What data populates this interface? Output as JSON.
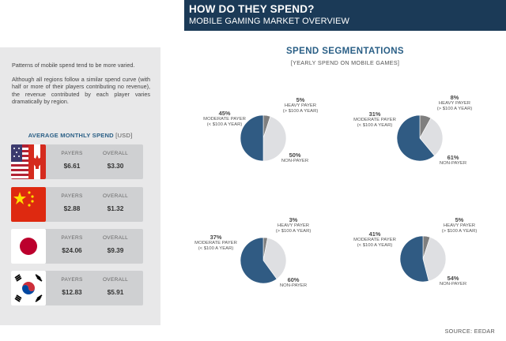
{
  "header": {
    "title": "HOW DO THEY SPEND?",
    "subtitle": "MOBILE GAMING MARKET OVERVIEW"
  },
  "intro": {
    "p1": "Patterns of mobile spend tend to be more varied.",
    "p2": "Although all regions follow a similar spend curve (with half or more of their players contributing no revenue), the revenue contributed by each player varies dramatically by region."
  },
  "avg_spend": {
    "title": "AVERAGE MONTHLY SPEND",
    "unit": "[USD]",
    "col_payers": "PAYERS",
    "col_overall": "OVERALL",
    "rows": [
      {
        "flag": "us-canada-flag",
        "payers": "$6.61",
        "overall": "$3.30"
      },
      {
        "flag": "china-flag",
        "payers": "$2.88",
        "overall": "$1.32"
      },
      {
        "flag": "japan-flag",
        "payers": "$24.06",
        "overall": "$9.39"
      },
      {
        "flag": "korea-flag",
        "payers": "$12.83",
        "overall": "$5.91"
      }
    ]
  },
  "segmentation": {
    "title": "SPEND SEGMENTATIONS",
    "subtitle": "[YEARLY SPEND ON MOBILE GAMES]",
    "labels": {
      "heavy": "HEAVY PAYER",
      "heavy_range": "(> $100 A YEAR)",
      "moderate": "MODERATE PAYER",
      "moderate_range": "(< $100 A YEAR)",
      "non": "NON-PAYER"
    }
  },
  "colors": {
    "navy": "#1b3a57",
    "accent": "#2a5f86",
    "non_payer": "#1f4e79",
    "heavy": "#6b6b6b"
  },
  "chart_data": {
    "type": "pie",
    "title": "SPEND SEGMENTATIONS",
    "subtitle": "[YEARLY SPEND ON MOBILE GAMES]",
    "categories": [
      "HEAVY PAYER",
      "MODERATE PAYER",
      "NON-PAYER"
    ],
    "series": [
      {
        "flag": "us-canada-flag",
        "values": [
          5,
          45,
          50
        ],
        "labels": [
          "5%",
          "45%",
          "50%"
        ]
      },
      {
        "flag": "japan-flag",
        "values": [
          8,
          31,
          61
        ],
        "labels": [
          "8%",
          "31%",
          "61%"
        ]
      },
      {
        "flag": "china-flag",
        "values": [
          3,
          37,
          60
        ],
        "labels": [
          "3%",
          "37%",
          "60%"
        ]
      },
      {
        "flag": "korea-flag",
        "values": [
          5,
          41,
          54
        ],
        "labels": [
          "5%",
          "41%",
          "54%"
        ]
      }
    ]
  },
  "source": "SOURCE: EEDAR"
}
